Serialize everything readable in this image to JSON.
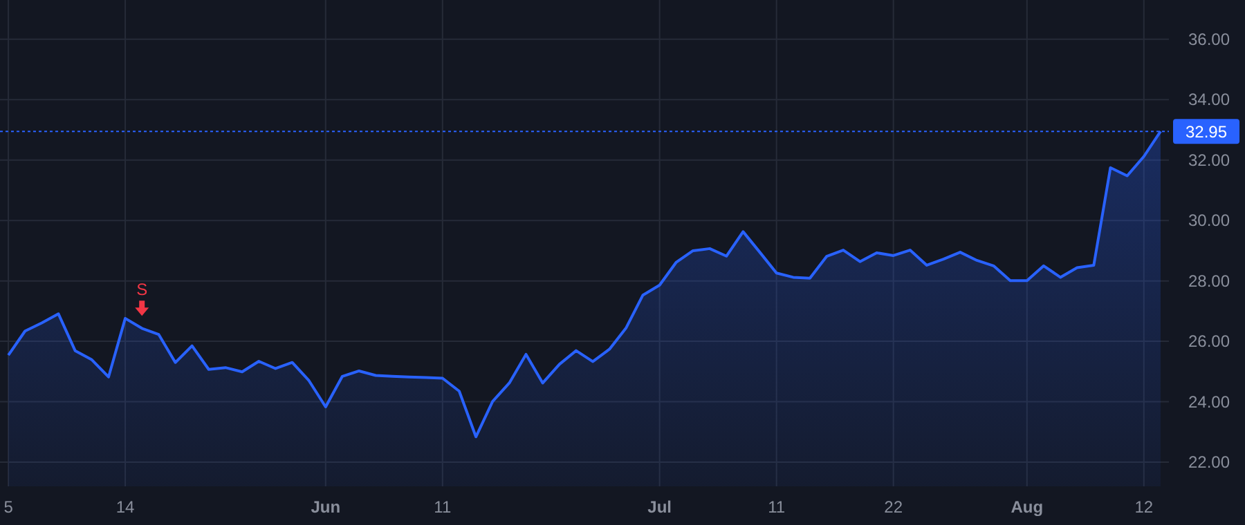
{
  "chart_data": {
    "type": "area",
    "categories": [
      "5",
      null,
      null,
      null,
      null,
      null,
      null,
      "14",
      null,
      null,
      null,
      null,
      null,
      null,
      null,
      null,
      null,
      null,
      null,
      "Jun",
      null,
      null,
      null,
      null,
      null,
      null,
      "11",
      null,
      null,
      null,
      null,
      null,
      null,
      null,
      null,
      null,
      null,
      null,
      null,
      "Jul",
      null,
      null,
      null,
      null,
      null,
      null,
      "11",
      null,
      null,
      null,
      null,
      null,
      null,
      "22",
      null,
      null,
      null,
      null,
      null,
      null,
      null,
      "Aug",
      null,
      null,
      null,
      null,
      null,
      null,
      "12",
      null
    ],
    "series": [
      {
        "color": "#2962ff",
        "values": [
          25.54,
          26.34,
          26.61,
          26.91,
          25.69,
          25.39,
          24.82,
          26.76,
          26.43,
          26.23,
          25.3,
          25.85,
          25.07,
          25.13,
          24.99,
          25.34,
          25.1,
          25.3,
          24.7,
          23.83,
          24.84,
          25.02,
          24.87,
          24.84,
          24.82,
          24.8,
          24.78,
          24.35,
          22.84,
          24.01,
          24.62,
          25.57,
          24.62,
          25.24,
          25.69,
          25.33,
          25.74,
          26.45,
          27.53,
          27.86,
          28.62,
          29.0,
          29.07,
          28.82,
          29.63,
          28.95,
          28.26,
          28.12,
          28.09,
          28.81,
          29.02,
          28.64,
          28.93,
          28.84,
          29.02,
          28.52,
          28.72,
          28.95,
          28.68,
          28.5,
          28.01,
          28.01,
          28.5,
          28.12,
          28.44,
          28.52,
          31.75,
          31.48,
          32.12,
          32.95
        ]
      }
    ],
    "ylim": [
      21.2,
      37.3
    ],
    "yticks": [
      {
        "value": 22,
        "label": "22.00"
      },
      {
        "value": 24,
        "label": "24.00"
      },
      {
        "value": 26,
        "label": "26.00"
      },
      {
        "value": 28,
        "label": "28.00"
      },
      {
        "value": 30,
        "label": "30.00"
      },
      {
        "value": 32,
        "label": "32.00"
      },
      {
        "value": 34,
        "label": "34.00"
      },
      {
        "value": 36,
        "label": "36.00"
      }
    ],
    "ref_lines": [
      {
        "axis": "y",
        "value": 32.95,
        "label": "32.95",
        "color": "#2962ff",
        "line_style": "dotted"
      }
    ],
    "annotations": [
      {
        "text": "S",
        "y": 26.43
      }
    ],
    "grid": true
  }
}
